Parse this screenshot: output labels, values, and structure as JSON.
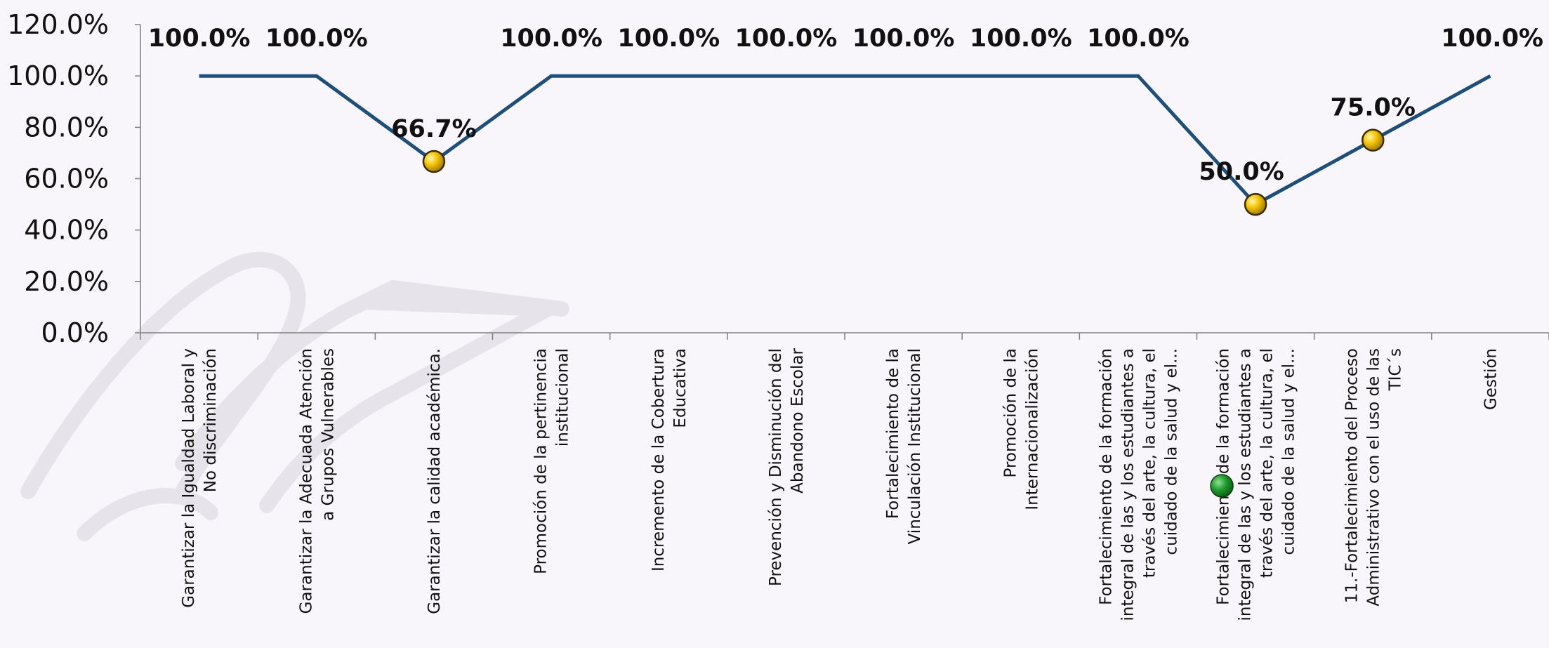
{
  "chart_data": {
    "type": "line",
    "title": "",
    "xlabel": "",
    "ylabel": "",
    "ylim": [
      0,
      120
    ],
    "y_ticks": [
      "0.0%",
      "20.0%",
      "40.0%",
      "60.0%",
      "80.0%",
      "100.0%",
      "120.0%"
    ],
    "grid": false,
    "legend": "none",
    "line_color": "#1f4e79",
    "highlight_marker_color": "#f5c400",
    "categories": [
      [
        "Garantizar la Igualdad Laboral y",
        "No discriminación"
      ],
      [
        "Garantizar la Adecuada Atención",
        "a Grupos Vulnerables"
      ],
      [
        "Garantizar la calidad académica."
      ],
      [
        "Promoción de la pertinencia",
        "institucional"
      ],
      [
        "Incremento de la Cobertura",
        "Educativa"
      ],
      [
        "Prevención y Disminución del",
        "Abandono Escolar"
      ],
      [
        "Fortalecimiento de la",
        "Vinculación Institucional"
      ],
      [
        "Promoción de la",
        "Internacionalización"
      ],
      [
        "Fortalecimiento de la formación",
        "integral de las y los estudiantes a",
        "través del arte, la cultura, el",
        "cuidado de la salud y el..."
      ],
      [
        "Fortalecimiento de la formación",
        "integral de las y los estudiantes a",
        "través del arte, la cultura, el",
        "cuidado de la salud y el..."
      ],
      [
        "11.-Fortalecimiento del Proceso",
        "Administrativo con el uso de las",
        "TIC´s"
      ],
      [
        "Gestión"
      ]
    ],
    "values": [
      100,
      100,
      66.7,
      100,
      100,
      100,
      100,
      100,
      100,
      50,
      75,
      100
    ],
    "data_labels": [
      "100.0%",
      "100.0%",
      "66.7%",
      "100.0%",
      "100.0%",
      "100.0%",
      "100.0%",
      "100.0%",
      "100.0%",
      "50.0%",
      "75.0%",
      "100.0%"
    ],
    "highlighted_points": [
      2,
      9,
      10
    ]
  }
}
